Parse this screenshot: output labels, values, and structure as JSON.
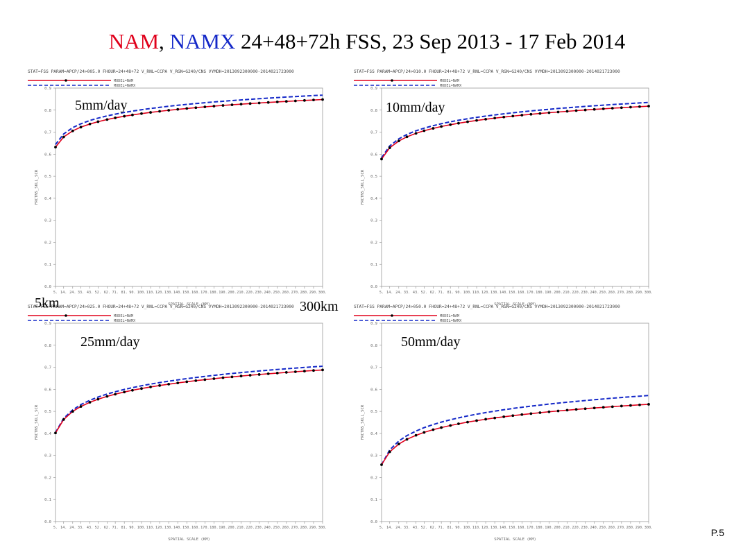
{
  "title": {
    "nam": "NAM",
    "sep": ", ",
    "namx": "NAMX",
    "rest": " 24+48+72h FSS,  23 Sep 2013 - 17 Feb 2014"
  },
  "page_number": "P.5",
  "scale_labels": {
    "min": "5km",
    "max": "300km"
  },
  "colors": {
    "nam": "#e0001b",
    "namx": "#1428c8"
  },
  "chart_data": [
    {
      "type": "line",
      "header": "STAT=FSS PARAM=APCP/24>005.0 FHOUR=24+48+72 V_RNL=CCPA V_RGN=G240/CNS VYMDH=2013092300000-2014021723000",
      "threshold_label": "5mm/day",
      "ylabel": "FRCTNS_SKLL_SCR",
      "xlabel": "SPATIAL SCALE (KM)",
      "x": [
        5,
        14,
        24,
        33,
        43,
        52,
        62,
        71,
        81,
        90,
        100,
        110,
        120,
        130,
        140,
        150,
        160,
        170,
        180,
        190,
        200,
        210,
        220,
        230,
        240,
        250,
        260,
        270,
        280,
        290,
        300
      ],
      "xtick_labels": [
        "5.",
        "14.",
        "24.",
        "33.",
        "43.",
        "52.",
        "62.",
        "71.",
        "81.",
        "90.",
        "100.",
        "110.",
        "120.",
        "130.",
        "140.",
        "150.",
        "160.",
        "170.",
        "180.",
        "190.",
        "200.",
        "210.",
        "220.",
        "230.",
        "240.",
        "250.",
        "260.",
        "270.",
        "280.",
        "290.",
        "300."
      ],
      "ylim": [
        0,
        0.9
      ],
      "ytick_labels": [
        "0.0",
        "0.1",
        "0.2",
        "0.3",
        "0.4",
        "0.5",
        "0.6",
        "0.7",
        "0.8",
        "0.9"
      ],
      "series": [
        {
          "name": "MODEL=NAM",
          "color": "#e0001b",
          "dash": false,
          "start": 0.632,
          "end": 0.848
        },
        {
          "name": "MODEL=NAMX",
          "color": "#1428c8",
          "dash": true,
          "start": 0.644,
          "end": 0.868
        }
      ]
    },
    {
      "type": "line",
      "header": "STAT=FSS PARAM=APCP/24>010.0 FHOUR=24+48+72 V_RNL=CCPA V_RGN=G240/CNS VYMDH=2013092300000-2014021723000",
      "threshold_label": "10mm/day",
      "ylabel": "FRCTNS_SKLL_SCR",
      "xlabel": "SPATIAL SCALE (KM)",
      "x": [
        5,
        14,
        24,
        33,
        43,
        52,
        62,
        71,
        81,
        90,
        100,
        110,
        120,
        130,
        140,
        150,
        160,
        170,
        180,
        190,
        200,
        210,
        220,
        230,
        240,
        250,
        260,
        270,
        280,
        290,
        300
      ],
      "xtick_labels": [
        "5.",
        "14.",
        "24.",
        "33.",
        "43.",
        "52.",
        "62.",
        "71.",
        "81.",
        "90.",
        "100.",
        "110.",
        "120.",
        "130.",
        "140.",
        "150.",
        "160.",
        "170.",
        "180.",
        "190.",
        "200.",
        "210.",
        "220.",
        "230.",
        "240.",
        "250.",
        "260.",
        "270.",
        "280.",
        "290.",
        "300."
      ],
      "ylim": [
        0,
        0.9
      ],
      "ytick_labels": [
        "0.0",
        "0.1",
        "0.2",
        "0.3",
        "0.4",
        "0.5",
        "0.6",
        "0.7",
        "0.8",
        "0.9"
      ],
      "series": [
        {
          "name": "MODEL=NAM",
          "color": "#e0001b",
          "dash": false,
          "start": 0.578,
          "end": 0.818
        },
        {
          "name": "MODEL=NAMX",
          "color": "#1428c8",
          "dash": true,
          "start": 0.584,
          "end": 0.835
        }
      ]
    },
    {
      "type": "line",
      "header": "STAT=FSS PARAM=APCP/24>025.0 FHOUR=24+48+72 V_RNL=CCPA V_RGN=G240/CNS VYMDH=2013092300000-2014021723000",
      "threshold_label": "25mm/day",
      "ylabel": "FRCTNS_SKLL_SCR",
      "xlabel": "SPATIAL SCALE (KM)",
      "x": [
        5,
        14,
        24,
        33,
        43,
        52,
        62,
        71,
        81,
        90,
        100,
        110,
        120,
        130,
        140,
        150,
        160,
        170,
        180,
        190,
        200,
        210,
        220,
        230,
        240,
        250,
        260,
        270,
        280,
        290,
        300
      ],
      "xtick_labels": [
        "5.",
        "14.",
        "24.",
        "33.",
        "43.",
        "52.",
        "62.",
        "71.",
        "81.",
        "90.",
        "100.",
        "110.",
        "120.",
        "130.",
        "140.",
        "150.",
        "160.",
        "170.",
        "180.",
        "190.",
        "200.",
        "210.",
        "220.",
        "230.",
        "240.",
        "250.",
        "260.",
        "270.",
        "280.",
        "290.",
        "300."
      ],
      "ylim": [
        0,
        0.9
      ],
      "ytick_labels": [
        "0.0",
        "0.1",
        "0.2",
        "0.3",
        "0.4",
        "0.5",
        "0.6",
        "0.7",
        "0.8",
        "0.9"
      ],
      "series": [
        {
          "name": "MODEL=NAM",
          "color": "#e0001b",
          "dash": false,
          "start": 0.402,
          "end": 0.688
        },
        {
          "name": "MODEL=NAMX",
          "color": "#1428c8",
          "dash": true,
          "start": 0.404,
          "end": 0.705
        }
      ]
    },
    {
      "type": "line",
      "header": "STAT=FSS PARAM=APCP/24>050.0 FHOUR=24+48+72 V_RNL=CCPA V_RGN=G240/CNS VYMDH=2013092300000-2014021723000",
      "threshold_label": "50mm/day",
      "ylabel": "FRCTNS_SKLL_SCR",
      "xlabel": "SPATIAL SCALE (KM)",
      "x": [
        5,
        14,
        24,
        33,
        43,
        52,
        62,
        71,
        81,
        90,
        100,
        110,
        120,
        130,
        140,
        150,
        160,
        170,
        180,
        190,
        200,
        210,
        220,
        230,
        240,
        250,
        260,
        270,
        280,
        290,
        300
      ],
      "xtick_labels": [
        "5.",
        "14.",
        "24.",
        "33.",
        "43.",
        "52.",
        "62.",
        "71.",
        "81.",
        "90.",
        "100.",
        "110.",
        "120.",
        "130.",
        "140.",
        "150.",
        "160.",
        "170.",
        "180.",
        "190.",
        "200.",
        "210.",
        "220.",
        "230.",
        "240.",
        "250.",
        "260.",
        "270.",
        "280.",
        "290.",
        "300."
      ],
      "ylim": [
        0,
        0.9
      ],
      "ytick_labels": [
        "0.0",
        "0.1",
        "0.2",
        "0.3",
        "0.4",
        "0.5",
        "0.6",
        "0.7",
        "0.8",
        "0.9"
      ],
      "series": [
        {
          "name": "MODEL=NAM",
          "color": "#e0001b",
          "dash": false,
          "start": 0.258,
          "end": 0.532
        },
        {
          "name": "MODEL=NAMX",
          "color": "#1428c8",
          "dash": true,
          "start": 0.258,
          "end": 0.572
        }
      ]
    }
  ]
}
